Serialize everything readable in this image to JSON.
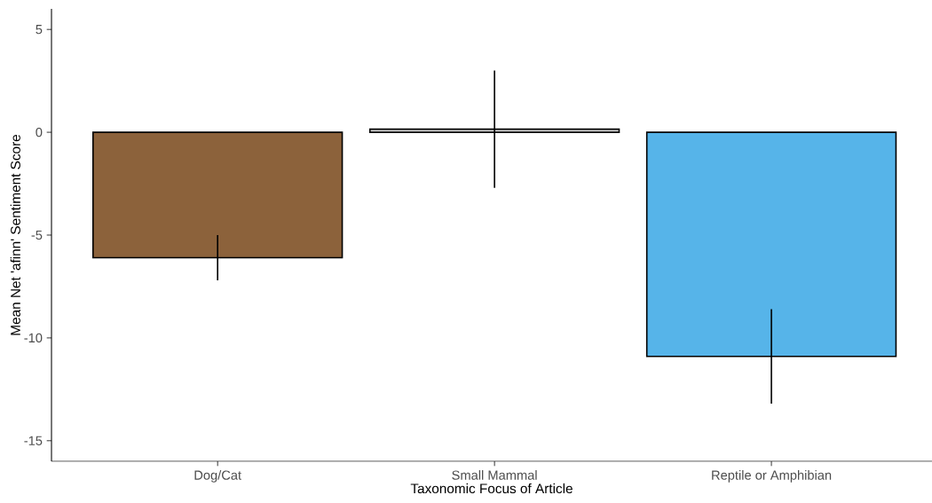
{
  "chart_data": {
    "type": "bar",
    "xlabel": "Taxonomic Focus of Article",
    "ylabel": "Mean Net 'afinn' Sentiment Score",
    "categories": [
      "Dog/Cat",
      "Small Mammal",
      "Reptile or Amphibian"
    ],
    "values": [
      -6.1,
      0.15,
      -10.9
    ],
    "colors": [
      "#8c623b",
      "#d9d9d9",
      "#56b4e9"
    ],
    "errors": [
      [
        -7.2,
        -5.0
      ],
      [
        -2.7,
        3.0
      ],
      [
        -13.2,
        -8.6
      ]
    ],
    "ylim": [
      -16,
      6
    ],
    "yticks": [
      -15,
      -10,
      -5,
      0,
      5
    ]
  }
}
